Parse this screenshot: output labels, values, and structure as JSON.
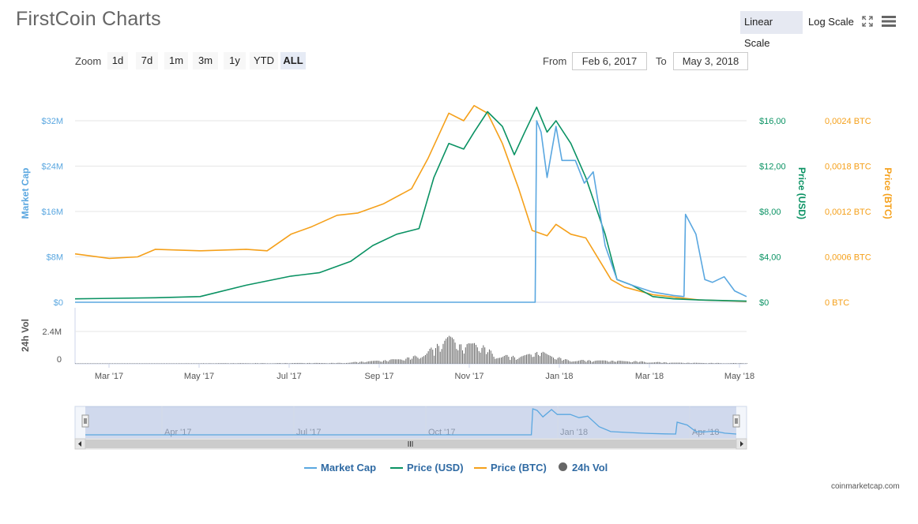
{
  "header": {
    "title": "FirstCoin Charts",
    "linear_scale": "Linear Scale",
    "log_scale": "Log Scale"
  },
  "zoom": {
    "label": "Zoom",
    "buttons": [
      "1d",
      "7d",
      "1m",
      "3m",
      "1y",
      "YTD",
      "ALL"
    ],
    "active": "ALL"
  },
  "range": {
    "from_label": "From",
    "from_value": "Feb 6, 2017",
    "to_label": "To",
    "to_value": "May 3, 2018"
  },
  "legend": {
    "market_cap": "Market Cap",
    "price_usd": "Price (USD)",
    "price_btc": "Price (BTC)",
    "vol": "24h Vol"
  },
  "credit": "coinmarketcap.com",
  "colors": {
    "market_cap": "#5aa7e0",
    "price_usd": "#0a9263",
    "price_btc": "#f5a01a",
    "volume": "#555555"
  },
  "chart_data": {
    "type": "line",
    "x_ticks": [
      "Mar '17",
      "May '17",
      "Jul '17",
      "Sep '17",
      "Nov '17",
      "Jan '18",
      "Mar '18",
      "May '18"
    ],
    "x_range": [
      "2017-02-06",
      "2018-05-03"
    ],
    "axes": {
      "market_cap": {
        "label": "Market Cap",
        "ticks": [
          "$0",
          "$8M",
          "$16M",
          "$24M",
          "$32M"
        ],
        "ylim": [
          0,
          32000000
        ]
      },
      "price_usd": {
        "label": "Price (USD)",
        "ticks": [
          "$0",
          "$4,00",
          "$8,00",
          "$12,00",
          "$16,00"
        ],
        "ylim": [
          0,
          16
        ]
      },
      "price_btc": {
        "label": "Price (BTC)",
        "ticks": [
          "0 BTC",
          "0,0006 BTC",
          "0,0012 BTC",
          "0,0018 BTC",
          "0,0024 BTC"
        ],
        "ylim": [
          0,
          0.0024
        ]
      },
      "volume": {
        "label": "24h Vol",
        "ticks": [
          "0",
          "2.4M"
        ],
        "ylim": [
          0,
          2400000
        ]
      }
    },
    "series": [
      {
        "name": "Market Cap",
        "axis": "market_cap",
        "x": [
          "2017-02-06",
          "2017-12-12",
          "2017-12-13",
          "2017-12-16",
          "2017-12-20",
          "2017-12-26",
          "2017-12-30",
          "2018-01-08",
          "2018-01-14",
          "2018-01-20",
          "2018-01-28",
          "2018-02-05",
          "2018-02-15",
          "2018-03-01",
          "2018-03-15",
          "2018-03-22",
          "2018-03-23",
          "2018-03-30",
          "2018-04-05",
          "2018-04-10",
          "2018-04-18",
          "2018-04-25",
          "2018-05-03"
        ],
        "values": [
          0,
          0,
          32000000,
          30000000,
          22000000,
          31000000,
          25000000,
          25000000,
          21000000,
          23000000,
          10000000,
          4000000,
          3000000,
          1800000,
          1200000,
          1000000,
          15500000,
          12000000,
          4000000,
          3500000,
          4500000,
          2000000,
          1000000
        ]
      },
      {
        "name": "Price (USD)",
        "axis": "price_usd",
        "x": [
          "2017-02-06",
          "2017-04-01",
          "2017-05-01",
          "2017-06-01",
          "2017-07-01",
          "2017-07-20",
          "2017-08-10",
          "2017-08-25",
          "2017-09-10",
          "2017-09-25",
          "2017-10-05",
          "2017-10-15",
          "2017-10-25",
          "2017-11-01",
          "2017-11-10",
          "2017-11-20",
          "2017-11-28",
          "2017-12-05",
          "2017-12-13",
          "2017-12-20",
          "2017-12-26",
          "2018-01-05",
          "2018-01-15",
          "2018-01-28",
          "2018-02-05",
          "2018-02-15",
          "2018-03-01",
          "2018-03-15",
          "2018-04-01",
          "2018-05-03"
        ],
        "values": [
          0.3,
          0.4,
          0.5,
          1.5,
          2.3,
          2.6,
          3.6,
          5.0,
          6.0,
          6.5,
          11.0,
          14.0,
          13.5,
          15.0,
          16.8,
          15.5,
          13.0,
          15.0,
          17.2,
          15.0,
          16.0,
          14.0,
          11.0,
          6.0,
          2.0,
          1.5,
          0.5,
          0.3,
          0.2,
          0.1
        ]
      },
      {
        "name": "Price (BTC)",
        "axis": "price_btc",
        "x": [
          "2017-02-06",
          "2017-03-01",
          "2017-03-20",
          "2017-04-01",
          "2017-05-01",
          "2017-06-01",
          "2017-06-15",
          "2017-07-01",
          "2017-07-15",
          "2017-08-01",
          "2017-08-15",
          "2017-09-01",
          "2017-09-20",
          "2017-10-01",
          "2017-10-15",
          "2017-10-25",
          "2017-11-01",
          "2017-11-10",
          "2017-11-20",
          "2017-12-01",
          "2017-12-10",
          "2017-12-20",
          "2017-12-26",
          "2018-01-05",
          "2018-01-15",
          "2018-02-01",
          "2018-02-10",
          "2018-03-01",
          "2018-04-01",
          "2018-05-03"
        ],
        "values": [
          0.00064,
          0.00058,
          0.0006,
          0.0007,
          0.00068,
          0.0007,
          0.00068,
          0.0009,
          0.001,
          0.00115,
          0.00118,
          0.0013,
          0.0015,
          0.0019,
          0.0025,
          0.0024,
          0.0026,
          0.0025,
          0.0021,
          0.0015,
          0.00095,
          0.00088,
          0.00103,
          0.0009,
          0.00085,
          0.0003,
          0.0002,
          0.0001,
          3e-05,
          1e-05
        ]
      },
      {
        "name": "24h Vol",
        "axis": "volume",
        "x": [
          "2017-02-06",
          "2017-08-01",
          "2017-09-01",
          "2017-09-20",
          "2017-10-05",
          "2017-10-15",
          "2017-10-25",
          "2017-11-01",
          "2017-11-15",
          "2017-12-01",
          "2017-12-15",
          "2018-01-01",
          "2018-01-20",
          "2018-02-15",
          "2018-03-15",
          "2018-05-03"
        ],
        "values": [
          20000,
          80000,
          300000,
          600000,
          1500000,
          2400000,
          1500000,
          2100000,
          900000,
          600000,
          1100000,
          400000,
          300000,
          250000,
          100000,
          60000
        ]
      }
    ],
    "navigator": {
      "x_ticks": [
        "Apr '17",
        "Jul '17",
        "Oct '17",
        "Jan '18",
        "Apr '18"
      ]
    }
  }
}
